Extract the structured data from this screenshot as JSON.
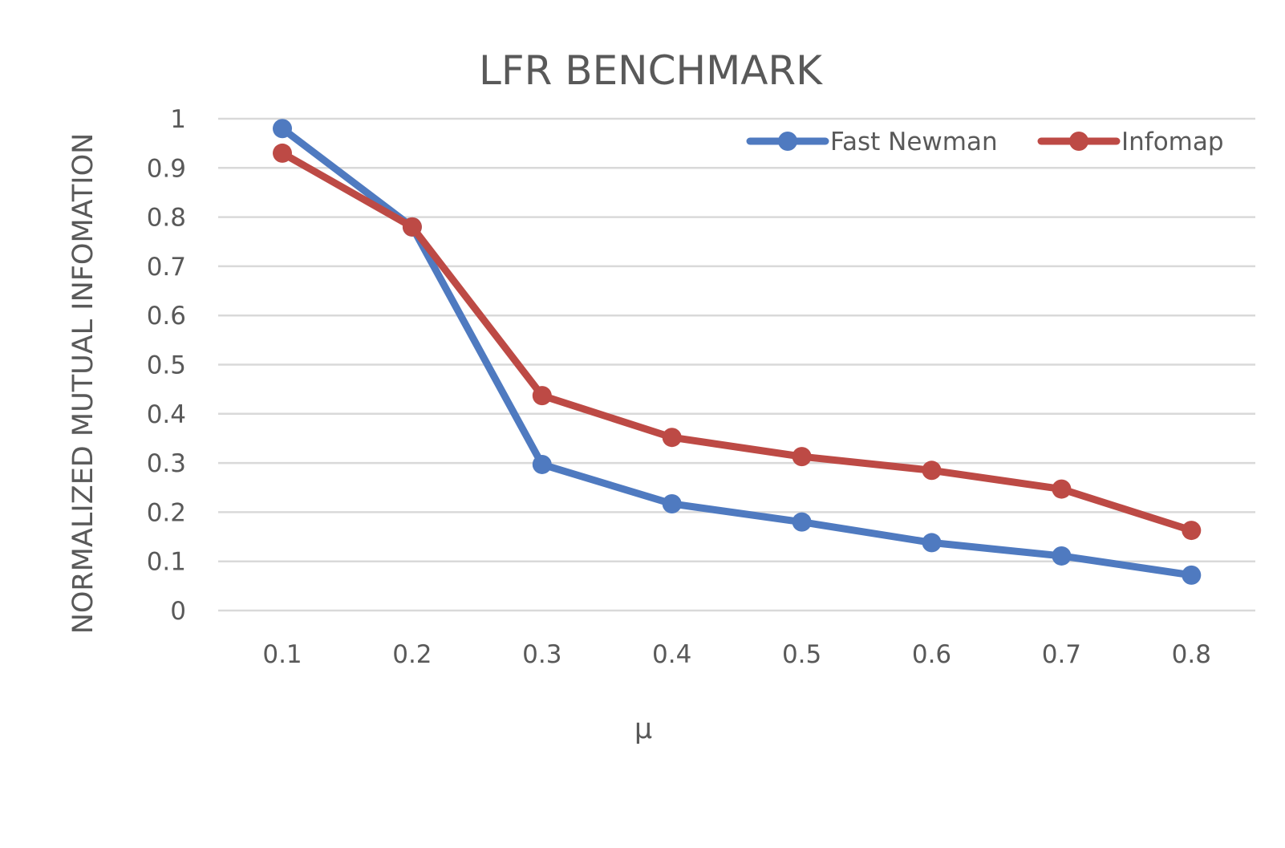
{
  "chart_data": {
    "type": "line",
    "title": "LFR BENCHMARK",
    "xlabel": "μ",
    "ylabel": "NORMALIZED MUTUAL INFOMATION",
    "categories": [
      "0.1",
      "0.2",
      "0.3",
      "0.4",
      "0.5",
      "0.6",
      "0.7",
      "0.8"
    ],
    "ylim": [
      0,
      1
    ],
    "yticks": [
      "0",
      "0.1",
      "0.2",
      "0.3",
      "0.4",
      "0.5",
      "0.6",
      "0.7",
      "0.8",
      "0.9",
      "1"
    ],
    "grid": true,
    "legend_position": "top-right",
    "series": [
      {
        "name": "Fast Newman",
        "color": "#4f7ac0",
        "values": [
          0.98,
          0.78,
          0.297,
          0.217,
          0.18,
          0.138,
          0.111,
          0.072
        ]
      },
      {
        "name": "Infomap",
        "color": "#bd4a45",
        "values": [
          0.93,
          0.78,
          0.437,
          0.352,
          0.313,
          0.285,
          0.247,
          0.163
        ]
      }
    ]
  }
}
